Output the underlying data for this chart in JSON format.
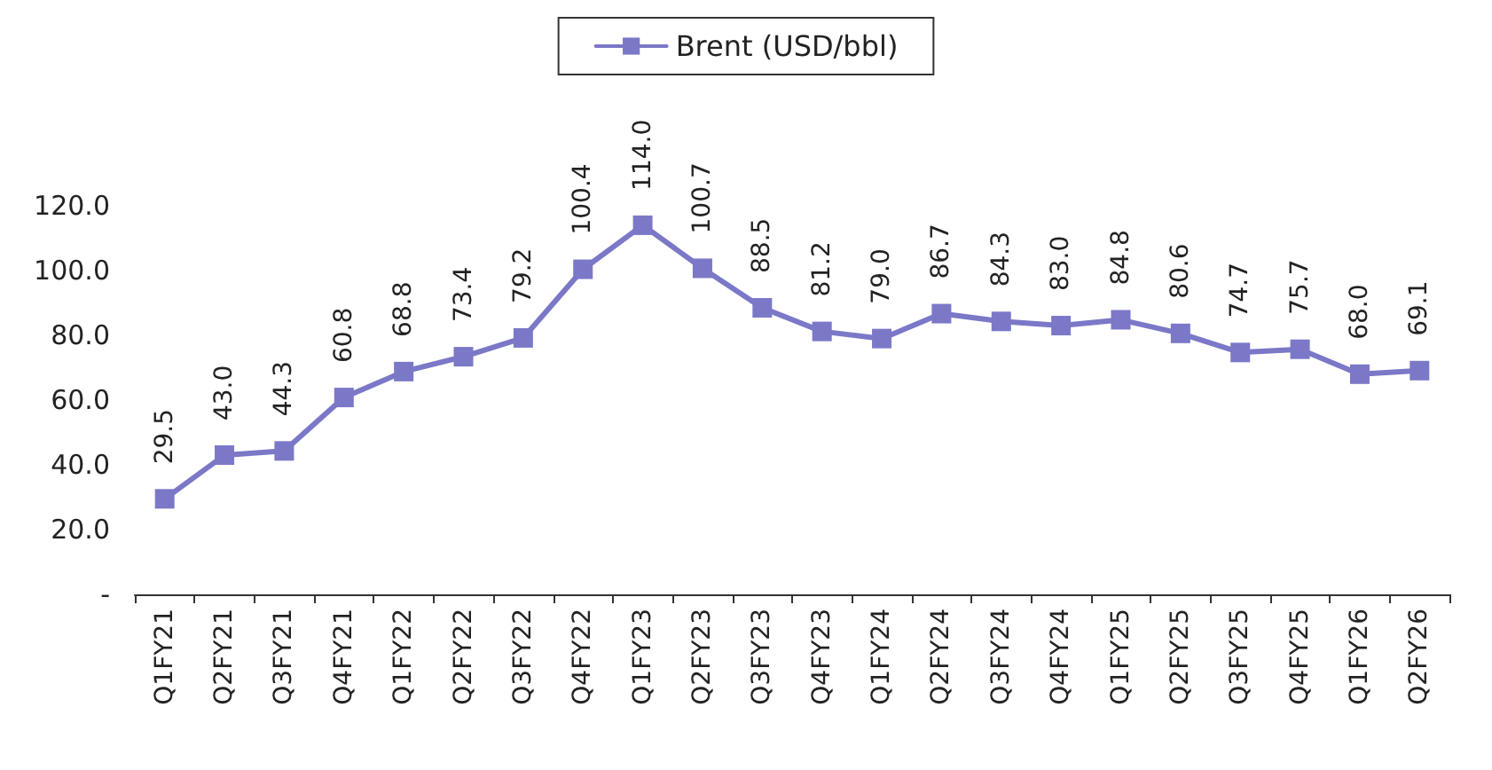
{
  "chart_data": {
    "type": "line",
    "categories": [
      "Q1FY21",
      "Q2FY21",
      "Q3FY21",
      "Q4FY21",
      "Q1FY22",
      "Q2FY22",
      "Q3FY22",
      "Q4FY22",
      "Q1FY23",
      "Q2FY23",
      "Q3FY23",
      "Q4FY23",
      "Q1FY24",
      "Q2FY24",
      "Q3FY24",
      "Q4FY24",
      "Q1FY25",
      "Q2FY25",
      "Q3FY25",
      "Q4FY25",
      "Q1FY26",
      "Q2FY26"
    ],
    "series": [
      {
        "name": "Brent (USD/bbl)",
        "color": "#7b78c8",
        "values": [
          29.5,
          43.0,
          44.3,
          60.8,
          68.8,
          73.4,
          79.2,
          100.4,
          114.0,
          100.7,
          88.5,
          81.2,
          79.0,
          86.7,
          84.3,
          83.0,
          84.8,
          80.6,
          74.7,
          75.7,
          68.0,
          69.1
        ]
      }
    ],
    "value_labels": [
      "29.5",
      "43.0",
      "44.3",
      "60.8",
      "68.8",
      "73.4",
      "79.2",
      "100.4",
      "114.0",
      "100.7",
      "88.5",
      "81.2",
      "79.0",
      "86.7",
      "84.3",
      "83.0",
      "84.8",
      "80.6",
      "74.7",
      "75.7",
      "68.0",
      "69.1"
    ],
    "ylim": [
      0,
      120
    ],
    "yticks": [
      {
        "value": 0,
        "label": "-"
      },
      {
        "value": 20,
        "label": "20.0"
      },
      {
        "value": 40,
        "label": "40.0"
      },
      {
        "value": 60,
        "label": "60.0"
      },
      {
        "value": 80,
        "label": "80.0"
      },
      {
        "value": 100,
        "label": "100.0"
      },
      {
        "value": 120,
        "label": "120.0"
      }
    ],
    "grid": false,
    "legend": "top",
    "marker": "square",
    "line_style": "solid"
  }
}
